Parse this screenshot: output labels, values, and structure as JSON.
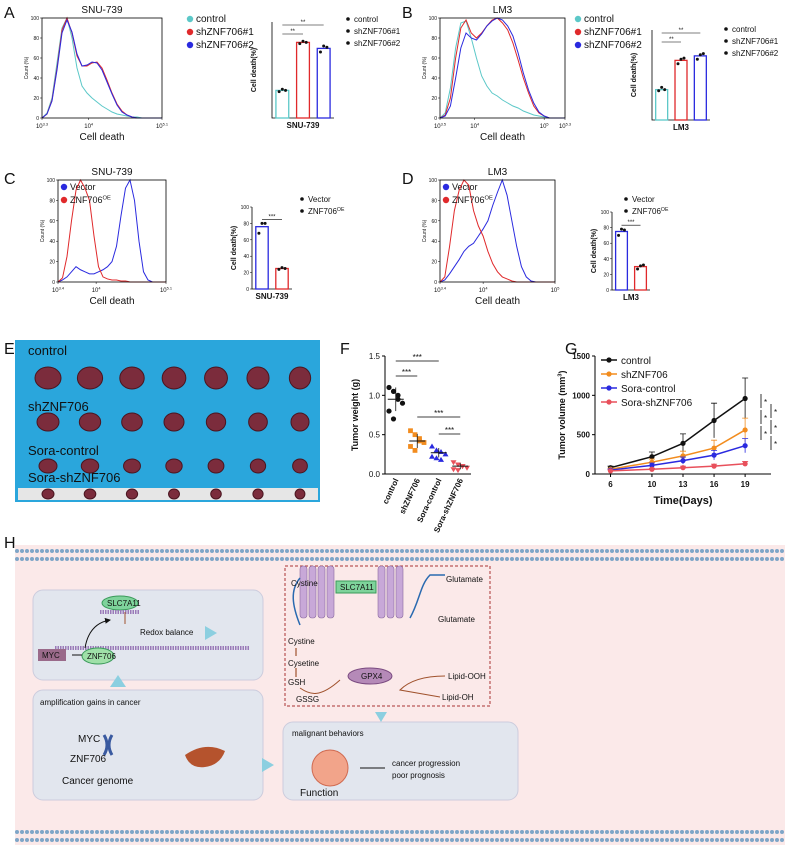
{
  "panels": [
    {
      "letter": "A",
      "histogram": {
        "title": "SNU-739",
        "xlabel": "Cell death",
        "ylabel": "Count (%)",
        "tick_base": "10",
        "xlim": [
          3.3,
          5.1
        ],
        "xticks": [
          3.3,
          4,
          5.1
        ],
        "ylim": [
          0,
          100
        ],
        "yticks": [
          0,
          20,
          40,
          60,
          80,
          100
        ],
        "series": [
          {
            "name": "control",
            "color": "#5cc8c8",
            "values": [
              0,
              5,
              20,
              55,
              90,
              100,
              80,
              50,
              32,
              25,
              20,
              16,
              12,
              9,
              6,
              4,
              3,
              2,
              1,
              1,
              0,
              0,
              0,
              0,
              0
            ]
          },
          {
            "name": "shZNF706#1",
            "color": "#e0292b",
            "values": [
              0,
              4,
              18,
              50,
              88,
              100,
              85,
              62,
              52,
              52,
              55,
              56,
              50,
              38,
              25,
              14,
              7,
              3,
              1,
              0,
              0,
              0,
              0,
              0,
              0
            ]
          },
          {
            "name": "shZNF706#2",
            "color": "#2a2adf",
            "values": [
              0,
              4,
              17,
              48,
              85,
              98,
              86,
              64,
              52,
              53,
              56,
              55,
              48,
              36,
              24,
              13,
              6,
              3,
              1,
              0,
              0,
              0,
              0,
              0,
              0
            ]
          }
        ]
      },
      "bar": {
        "ylabel": "Cell death(%)",
        "xlabel": "SNU-739",
        "ylim": [
          0,
          80
        ],
        "bars": [
          {
            "name": "control",
            "color": "#5cc8c8",
            "value": 23,
            "points": [
              22,
              24,
              23
            ]
          },
          {
            "name": "shZNF706#1",
            "color": "#e0292b",
            "value": 63,
            "points": [
              62,
              64,
              63
            ]
          },
          {
            "name": "shZNF706#2",
            "color": "#2a2adf",
            "value": 58,
            "points": [
              55,
              60,
              59
            ]
          }
        ],
        "significance": [
          "**",
          "**"
        ]
      }
    },
    {
      "letter": "B",
      "histogram": {
        "title": "LM3",
        "xlabel": "Cell death",
        "ylabel": "Count (%)",
        "tick_base": "10",
        "xlim": [
          3.5,
          5.3
        ],
        "xticks": [
          3.5,
          4,
          5,
          5.3
        ],
        "ylim": [
          0,
          100
        ],
        "yticks": [
          0,
          20,
          40,
          60,
          80,
          100
        ],
        "series": [
          {
            "name": "control",
            "color": "#5cc8c8",
            "values": [
              0,
              5,
              30,
              70,
              95,
              97,
              80,
              60,
              42,
              32,
              25,
              22,
              18,
              15,
              12,
              10,
              7,
              5,
              3,
              2,
              1,
              0,
              0,
              0,
              0
            ]
          },
          {
            "name": "shZNF706#1",
            "color": "#e0292b",
            "values": [
              0,
              3,
              20,
              60,
              90,
              98,
              85,
              80,
              85,
              92,
              98,
              100,
              95,
              88,
              75,
              58,
              40,
              25,
              12,
              5,
              2,
              0,
              0,
              0,
              0
            ]
          },
          {
            "name": "shZNF706#2",
            "color": "#2a2adf",
            "values": [
              0,
              2,
              12,
              40,
              70,
              85,
              80,
              78,
              84,
              92,
              97,
              100,
              98,
              92,
              82,
              65,
              45,
              28,
              15,
              6,
              2,
              0,
              0,
              0,
              0
            ]
          }
        ]
      },
      "bar": {
        "ylabel": "Cell death(%)",
        "xlabel": "LM3",
        "ylim": [
          0,
          80
        ],
        "bars": [
          {
            "name": "control",
            "color": "#5cc8c8",
            "value": 27,
            "points": [
              26,
              29,
              27
            ]
          },
          {
            "name": "shZNF706#1",
            "color": "#e0292b",
            "value": 53,
            "points": [
              50,
              54,
              55
            ]
          },
          {
            "name": "shZNF706#2",
            "color": "#2a2adf",
            "value": 57,
            "points": [
              54,
              58,
              59
            ]
          }
        ],
        "significance": [
          "**",
          "**"
        ]
      }
    },
    {
      "letter": "C",
      "histogram": {
        "title": "SNU-739",
        "xlabel": "Cell death",
        "ylabel": "Count (%)",
        "tick_base": "10",
        "xlim": [
          3.4,
          5.1
        ],
        "xticks": [
          3.4,
          4,
          5.1
        ],
        "ylim": [
          0,
          100
        ],
        "yticks": [
          0,
          20,
          40,
          60,
          80,
          100
        ],
        "series": [
          {
            "name": "Vector",
            "color": "#2a2adf",
            "values": [
              0,
              2,
              5,
              10,
              15,
              12,
              10,
              8,
              8,
              10,
              12,
              15,
              20,
              35,
              65,
              92,
              100,
              80,
              40,
              10,
              2,
              0,
              0,
              0,
              0
            ]
          },
          {
            "name": "ZNF706",
            "sup": "OE",
            "color": "#e0292b",
            "values": [
              0,
              4,
              25,
              60,
              90,
              100,
              92,
              80,
              45,
              15,
              5,
              3,
              2,
              2,
              1,
              1,
              0,
              0,
              0,
              0,
              0,
              0,
              0,
              0,
              0
            ]
          }
        ]
      },
      "bar": {
        "ylabel": "Cell death(%)",
        "xlabel": "SNU-739",
        "ylim": [
          0,
          100
        ],
        "yticks": [
          0,
          20,
          40,
          60,
          80,
          100
        ],
        "bars": [
          {
            "name": "Vector",
            "color": "#2a2adf",
            "value": 76,
            "points": [
              68,
              80,
              80
            ]
          },
          {
            "name": "ZNF706",
            "sup": "OE",
            "color": "#e0292b",
            "value": 25,
            "points": [
              24,
              26,
              25
            ]
          }
        ],
        "significance": [
          "***"
        ]
      }
    },
    {
      "letter": "D",
      "histogram": {
        "title": "LM3",
        "xlabel": "Cell death",
        "ylabel": "Count (%)",
        "tick_base": "10",
        "xlim": [
          3.4,
          5
        ],
        "xticks": [
          3.4,
          4,
          5
        ],
        "ylim": [
          0,
          100
        ],
        "yticks": [
          0,
          20,
          40,
          60,
          80,
          100
        ],
        "series": [
          {
            "name": "Vector",
            "color": "#2a2adf",
            "values": [
              0,
              2,
              8,
              15,
              22,
              30,
              35,
              38,
              45,
              52,
              60,
              75,
              88,
              100,
              85,
              60,
              35,
              15,
              5,
              1,
              0,
              0,
              0,
              0,
              0
            ]
          },
          {
            "name": "ZNF706",
            "sup": "OE",
            "color": "#e0292b",
            "values": [
              0,
              5,
              35,
              70,
              90,
              100,
              95,
              70,
              55,
              45,
              30,
              18,
              10,
              5,
              3,
              1,
              0,
              0,
              0,
              0,
              0,
              0,
              0,
              0,
              0
            ]
          }
        ]
      },
      "bar": {
        "ylabel": "Cell death(%)",
        "xlabel": "LM3",
        "ylim": [
          0,
          100
        ],
        "yticks": [
          0,
          20,
          40,
          60,
          80,
          100
        ],
        "bars": [
          {
            "name": "Vector",
            "color": "#2a2adf",
            "value": 75,
            "points": [
              70,
              78,
              77
            ]
          },
          {
            "name": "ZNF706",
            "sup": "OE",
            "color": "#e0292b",
            "value": 30,
            "points": [
              27,
              31,
              32
            ]
          }
        ],
        "significance": [
          "***"
        ]
      }
    },
    {
      "letter": "E",
      "rows": [
        "control",
        "shZNF706",
        "Sora-control",
        "Sora-shZNF706"
      ]
    },
    {
      "letter": "F",
      "ylabel": "Tumor weight (g)",
      "ylim": [
        0,
        1.5
      ],
      "yticks": [
        {
          "value": 0,
          "label": "0.0"
        },
        {
          "value": 0.5,
          "label": "0.5"
        },
        {
          "value": 1,
          "label": "1.0"
        },
        {
          "value": 1.5,
          "label": "1.5"
        }
      ],
      "groups": [
        {
          "name": "control",
          "color": "#111111",
          "mean": 0.95,
          "sd": 0.15,
          "points": [
            1.1,
            1.05,
            0.95,
            0.9,
            0.8,
            0.7,
            1.0
          ]
        },
        {
          "name": "shZNF706",
          "color": "#f28c1e",
          "mean": 0.42,
          "sd": 0.09,
          "points": [
            0.55,
            0.5,
            0.45,
            0.4,
            0.35,
            0.3,
            0.42
          ]
        },
        {
          "name": "Sora-control",
          "color": "#2a2adf",
          "mean": 0.27,
          "sd": 0.06,
          "points": [
            0.35,
            0.3,
            0.28,
            0.25,
            0.22,
            0.2,
            0.18
          ]
        },
        {
          "name": "Sora-shZNF706",
          "color": "#e8505b",
          "mean": 0.1,
          "sd": 0.04,
          "points": [
            0.15,
            0.12,
            0.1,
            0.08,
            0.06,
            0.05,
            0.1
          ]
        }
      ],
      "significance": [
        "***",
        "***",
        "***",
        "***"
      ]
    },
    {
      "letter": "G",
      "ylabel": {
        "text": "Tumor volume (mm",
        "sup": "3",
        "end": ")"
      },
      "xlabel": "Time(Days)",
      "x": [
        6,
        10,
        13,
        16,
        19
      ],
      "xlim": [
        4.5,
        21.5
      ],
      "xticks": [
        6,
        10,
        13,
        16,
        19
      ],
      "ylim": [
        0,
        1500
      ],
      "yticks": [
        0,
        500,
        1000,
        1500
      ],
      "series": [
        {
          "name": "control",
          "color": "#111111",
          "values": [
            80,
            220,
            390,
            680,
            960
          ],
          "errors": [
            20,
            60,
            120,
            220,
            260
          ]
        },
        {
          "name": "shZNF706",
          "color": "#f28c1e",
          "values": [
            60,
            150,
            230,
            330,
            560
          ],
          "errors": [
            15,
            40,
            60,
            100,
            150
          ]
        },
        {
          "name": "Sora-control",
          "color": "#2a2adf",
          "values": [
            50,
            110,
            170,
            240,
            360
          ],
          "errors": [
            12,
            30,
            45,
            60,
            90
          ]
        },
        {
          "name": "Sora-shZNF706",
          "color": "#e8505b",
          "values": [
            40,
            60,
            80,
            100,
            130
          ],
          "errors": [
            10,
            15,
            20,
            25,
            30
          ]
        }
      ],
      "significance": [
        "*",
        "*",
        "*",
        "*",
        "*",
        "*"
      ]
    },
    {
      "letter": "H",
      "transport": {
        "cystine_in": "Cystine",
        "glutamate_out": "Glutamate",
        "transporter": "SLC7A11",
        "glutamate_in": "Glutamate",
        "cystine": "Cystine",
        "cysteine": "Cysetine",
        "gsh": "GSH",
        "enzyme": "GPX4",
        "lipid_ooh": "Lipid-OOH",
        "lipid_oh": "Lipid-OH",
        "gssg": "GSSG"
      },
      "regulation": {
        "target": "SLC7A11",
        "oncogene": "MYC",
        "factor": "ZNF706",
        "effect": "Redox balance"
      },
      "genome": {
        "heading": "amplification gains in cancer",
        "gene1": "MYC",
        "gene2": "ZNF706",
        "caption": "Cancer genome"
      },
      "function": {
        "heading": "malignant behaviors",
        "outcome1": "cancer progression",
        "outcome2": "poor prognosis",
        "caption": "Function"
      }
    }
  ]
}
